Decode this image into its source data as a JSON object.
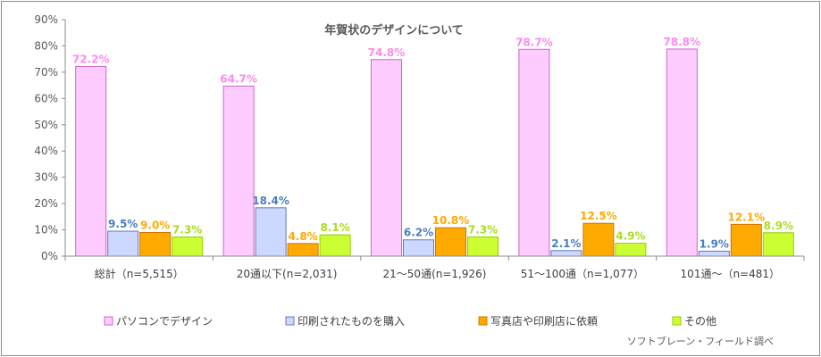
{
  "chart_data": {
    "type": "bar",
    "title": "年賀状のデザインについて",
    "categories": [
      "総計（n=5,515）",
      "20通以下(n=2,031)",
      "21～50通(n=1,926)",
      "51～100通（n=1,077）",
      "101通～（n=481）"
    ],
    "series": [
      {
        "name": "パソコンでデザイン",
        "values": [
          72.2,
          64.7,
          74.8,
          78.7,
          78.8
        ],
        "labels": [
          "72.2%",
          "64.7%",
          "74.8%",
          "78.7%",
          "78.8%"
        ],
        "color": "#ffccff",
        "border": "#cc66cc",
        "label_color": "#ff88ee"
      },
      {
        "name": "印刷されたものを購入",
        "values": [
          9.5,
          18.4,
          6.2,
          2.1,
          1.9
        ],
        "labels": [
          "9.5%",
          "18.4%",
          "6.2%",
          "2.1%",
          "1.9%"
        ],
        "color": "#ccd8ff",
        "border": "#6677bb",
        "label_color": "#4a7ec0"
      },
      {
        "name": "写真店や印刷店に依頼",
        "values": [
          9.0,
          4.8,
          10.8,
          12.5,
          12.1
        ],
        "labels": [
          "9.0%",
          "4.8%",
          "10.8%",
          "12.5%",
          "12.1%"
        ],
        "color": "#ffaa00",
        "border": "#cc7700",
        "label_color": "#ffaa00"
      },
      {
        "name": "その他",
        "values": [
          7.3,
          8.1,
          7.3,
          4.9,
          8.9
        ],
        "labels": [
          "7.3%",
          "8.1%",
          "7.3%",
          "4.9%",
          "8.9%"
        ],
        "color": "#ccff33",
        "border": "#99cc00",
        "label_color": "#aadd22"
      }
    ],
    "yticks": [
      "0%",
      "10%",
      "20%",
      "30%",
      "40%",
      "50%",
      "60%",
      "70%",
      "80%",
      "90%"
    ],
    "ylim": [
      0,
      90
    ],
    "grid": false,
    "legend_position": "bottom"
  },
  "source": "ソフトブレーン・フィールド調べ"
}
